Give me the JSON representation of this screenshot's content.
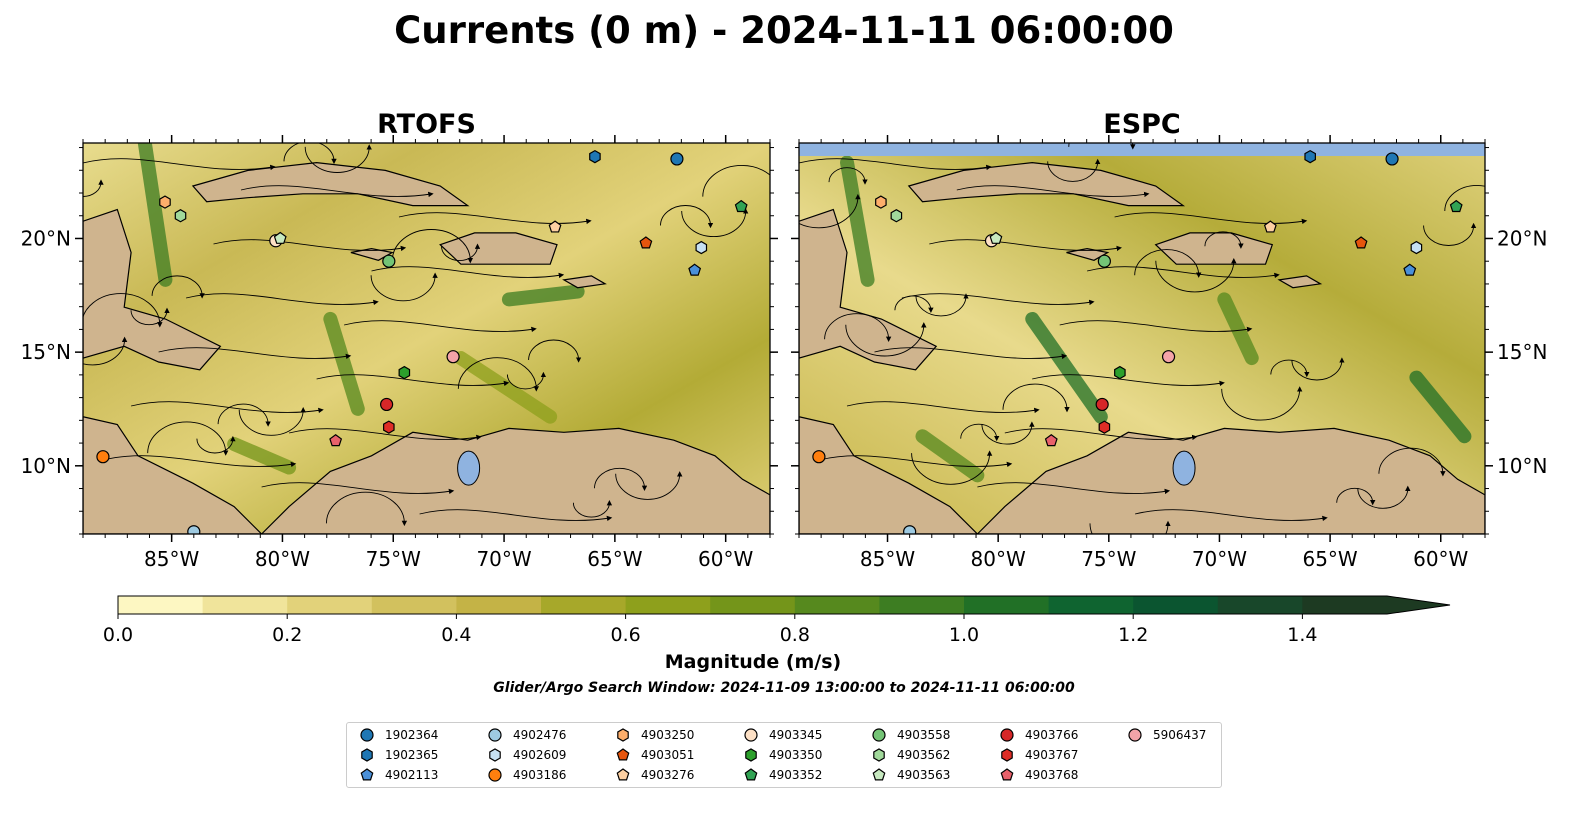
{
  "chart_data": {
    "type": "map",
    "title": "Currents (0 m) - 2024-11-11 06:00:00",
    "panels": [
      {
        "name": "RTOFS"
      },
      {
        "name": "ESPC"
      }
    ],
    "extent": {
      "lon": [
        -89,
        -58
      ],
      "lat": [
        7,
        24.2
      ]
    },
    "x_ticks": [
      -85,
      -80,
      -75,
      -70,
      -65,
      -60
    ],
    "x_tick_labels": [
      "85°W",
      "80°W",
      "75°W",
      "70°W",
      "65°W",
      "60°W"
    ],
    "y_ticks": [
      10,
      15,
      20
    ],
    "y_tick_labels": [
      "10°N",
      "15°N",
      "20°N"
    ],
    "colorbar": {
      "label": "Magnitude (m/s)",
      "min": 0.0,
      "max": 1.5,
      "step": 0.1,
      "extend": "max",
      "ticks": [
        0.0,
        0.2,
        0.4,
        0.6,
        0.8,
        1.0,
        1.2,
        1.4
      ],
      "tick_labels": [
        "0.0",
        "0.2",
        "0.4",
        "0.6",
        "0.8",
        "1.0",
        "1.2",
        "1.4"
      ],
      "colors": [
        "#fdf7c2",
        "#f0e49b",
        "#e2d27a",
        "#d2c15e",
        "#c4b346",
        "#a7a82a",
        "#8ea01c",
        "#74951a",
        "#56891e",
        "#3d7d22",
        "#217026",
        "#0f6430",
        "#0b5530",
        "#18472a",
        "#1d3a22"
      ]
    },
    "subtitle": "Glider/Argo Search Window: 2024-11-09 13:00:00 to 2024-11-11 06:00:00",
    "colors": {
      "land": "#cfb48e",
      "water_bodies": "#8fb3e0",
      "rivers": "#a0b8d6"
    },
    "floats": [
      {
        "id": "1902364",
        "marker": "circle",
        "color": "#1f77b4",
        "lon": -62.2,
        "lat": 23.5
      },
      {
        "id": "1902365",
        "marker": "hexagon",
        "color": "#1f77b4",
        "lon": -65.9,
        "lat": 23.6
      },
      {
        "id": "4902113",
        "marker": "pentagon",
        "color": "#4a90d9",
        "lon": -61.4,
        "lat": 18.6
      },
      {
        "id": "4902476",
        "marker": "circle",
        "color": "#9ecae1",
        "lon": -84.0,
        "lat": 7.1
      },
      {
        "id": "4902609",
        "marker": "hexagon",
        "color": "#c6e0f2",
        "lon": -61.1,
        "lat": 19.6
      },
      {
        "id": "4903186",
        "marker": "circle",
        "color": "#ff7f0e",
        "lon": -88.1,
        "lat": 10.4
      },
      {
        "id": "4903250",
        "marker": "hexagon",
        "color": "#fdae6b",
        "lon": -85.3,
        "lat": 21.6
      },
      {
        "id": "4903051",
        "marker": "pentagon",
        "color": "#e6550d",
        "lon": -63.6,
        "lat": 19.8
      },
      {
        "id": "4903276",
        "marker": "pentagon",
        "color": "#fdd0a2",
        "lon": -67.7,
        "lat": 20.5
      },
      {
        "id": "4903345",
        "marker": "circle",
        "color": "#fde0c5",
        "lon": -80.3,
        "lat": 19.9
      },
      {
        "id": "4903350",
        "marker": "hexagon",
        "color": "#2ca02c",
        "lon": -74.5,
        "lat": 14.1
      },
      {
        "id": "4903352",
        "marker": "pentagon",
        "color": "#31a354",
        "lon": -59.3,
        "lat": 21.4
      },
      {
        "id": "4903558",
        "marker": "circle",
        "color": "#74c476",
        "lon": -75.2,
        "lat": 19.0
      },
      {
        "id": "4903562",
        "marker": "hexagon",
        "color": "#a1d99b",
        "lon": -84.6,
        "lat": 21.0
      },
      {
        "id": "4903563",
        "marker": "pentagon",
        "color": "#c7e9c0",
        "lon": -80.1,
        "lat": 20.0
      },
      {
        "id": "4903766",
        "marker": "circle",
        "color": "#d62728",
        "lon": -75.3,
        "lat": 12.7
      },
      {
        "id": "4903767",
        "marker": "hexagon",
        "color": "#de2d26",
        "lon": -75.2,
        "lat": 11.7
      },
      {
        "id": "4903768",
        "marker": "pentagon",
        "color": "#e8616b",
        "lon": -77.6,
        "lat": 11.1
      },
      {
        "id": "5906437",
        "marker": "circle",
        "color": "#f4a3a8",
        "lon": -72.3,
        "lat": 14.8
      }
    ]
  }
}
